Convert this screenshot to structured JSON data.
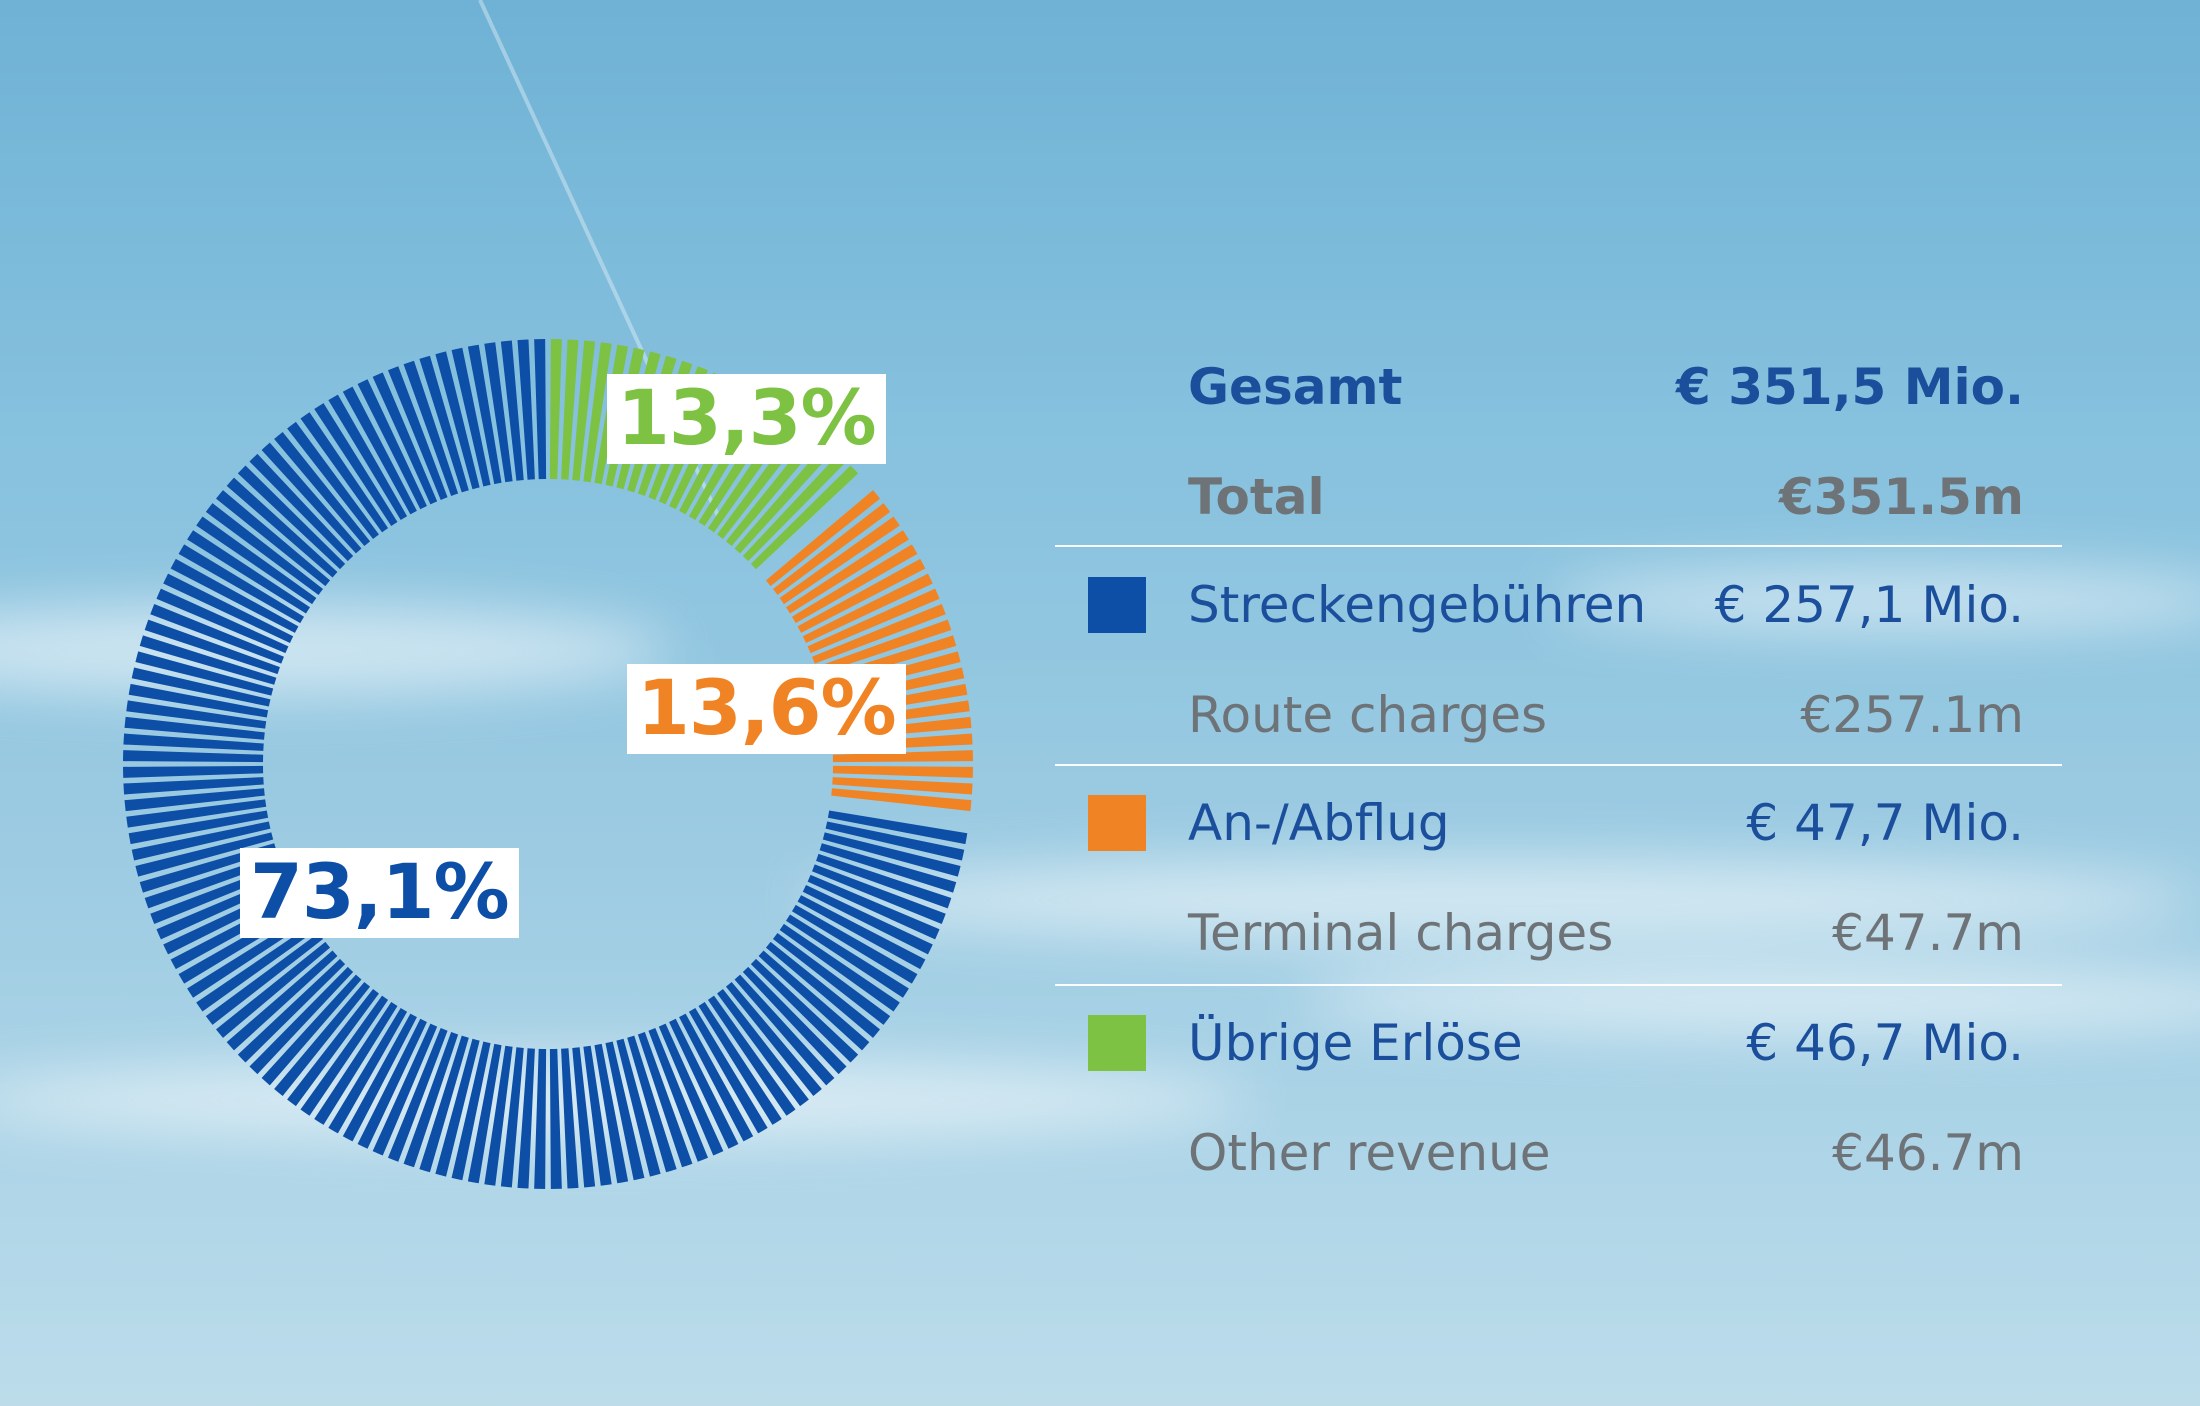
{
  "chart_data": {
    "type": "pie",
    "style": "donut",
    "slices": [
      {
        "label": "73,1%",
        "value": 73.1,
        "color": "#0d4ea6"
      },
      {
        "label": "13,6%",
        "value": 13.6,
        "color": "#f08424"
      },
      {
        "label": "13,3%",
        "value": 13.3,
        "color": "#7dc242"
      }
    ]
  },
  "legend": {
    "total": {
      "label_de": "Gesamt",
      "value_de": "€ 351,5 Mio.",
      "label_en": "Total",
      "value_en": "€351.5m"
    },
    "items": [
      {
        "label_de": "Streckengebühren",
        "value_de": "€ 257,1 Mio.",
        "label_en": "Route charges",
        "value_en": "€257.1m",
        "color": "#0d4ea6"
      },
      {
        "label_de": "An-/Abflug",
        "value_de": "€ 47,7 Mio.",
        "label_en": "Terminal charges",
        "value_en": "€47.7m",
        "color": "#f08424"
      },
      {
        "label_de": "Übrige Erlöse",
        "value_de": "€ 46,7 Mio.",
        "label_en": "Other revenue",
        "value_en": "€46.7m",
        "color": "#7dc242"
      }
    ]
  }
}
